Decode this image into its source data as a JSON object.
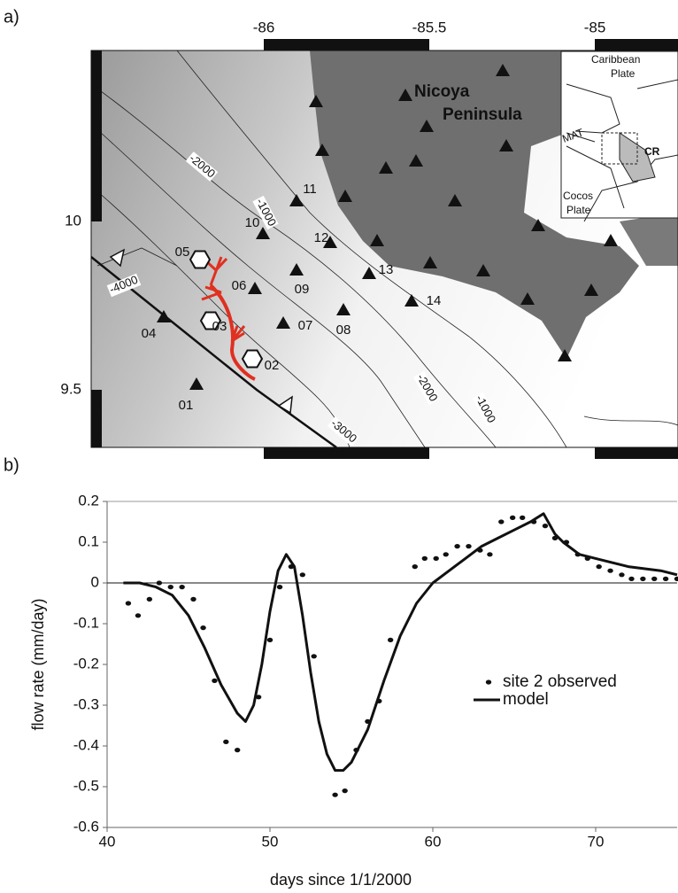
{
  "panels": {
    "a": "a)",
    "b": "b)"
  },
  "map": {
    "lon_ticks": [
      -86,
      -85.5,
      -85
    ],
    "lat_ticks": [
      10,
      9.5
    ],
    "region_label": [
      "Nicoya",
      "Peninsula"
    ],
    "stations": [
      "01",
      "02",
      "03",
      "04",
      "05",
      "06",
      "07",
      "08",
      "09",
      "10",
      "11",
      "12",
      "13",
      "14"
    ],
    "contour_labels": [
      "-2000",
      "-1000",
      "-4000",
      "-3000",
      "-2000",
      "-1000"
    ],
    "inset_labels": [
      "Caribbean",
      "Plate",
      "CR",
      "MAT",
      "Cocos",
      "Plate"
    ]
  },
  "chart_data": {
    "type": "line",
    "x_label": "days since 1/1/2000",
    "y_label": "flow rate (mm/day)",
    "xlim": [
      40,
      75
    ],
    "xticks": [
      40,
      50,
      60,
      70
    ],
    "ylim": [
      -0.6,
      0.2
    ],
    "yticks": [
      0.2,
      0.1,
      0,
      -0.1,
      -0.2,
      -0.3,
      -0.4,
      -0.5,
      -0.6
    ],
    "hline": 0,
    "legend": "lower right",
    "series": [
      {
        "name": "site 2 observed",
        "color": "#111111",
        "marker": "dot",
        "x": [
          41.3,
          41.9,
          42.6,
          43.2,
          43.9,
          44.6,
          45.3,
          45.9,
          46.6,
          47.3,
          48.0,
          49.3,
          50.0,
          50.6,
          51.3,
          52.0,
          52.7,
          54.0,
          54.6,
          55.3,
          56.0,
          56.7,
          57.4,
          58.9,
          59.5,
          60.2,
          60.8,
          61.5,
          62.2,
          62.9,
          63.5,
          64.2,
          64.9,
          65.5,
          66.2,
          66.9,
          67.5,
          68.2,
          68.9,
          69.5,
          70.2,
          70.9,
          71.6,
          72.2,
          72.9,
          73.6,
          74.3,
          75.0
        ],
        "values": [
          -0.05,
          -0.08,
          -0.04,
          0.0,
          -0.01,
          -0.01,
          -0.04,
          -0.11,
          -0.24,
          -0.39,
          -0.41,
          -0.28,
          -0.14,
          -0.01,
          0.04,
          0.02,
          -0.18,
          -0.52,
          -0.51,
          -0.41,
          -0.34,
          -0.29,
          -0.14,
          0.04,
          0.06,
          0.06,
          0.07,
          0.09,
          0.09,
          0.08,
          0.07,
          0.15,
          0.16,
          0.16,
          0.15,
          0.14,
          0.11,
          0.1,
          0.07,
          0.06,
          0.04,
          0.03,
          0.02,
          0.01,
          0.01,
          0.01,
          0.01,
          0.01
        ]
      },
      {
        "name": "model",
        "color": "#111111",
        "marker": "none",
        "x": [
          41,
          42,
          43,
          44,
          45,
          46,
          47,
          48,
          48.5,
          49,
          49.5,
          50,
          50.5,
          51,
          51.5,
          52,
          52.5,
          53,
          53.5,
          54,
          54.5,
          55,
          56,
          57,
          58,
          59,
          60,
          61,
          62,
          63,
          64,
          65,
          66,
          66.8,
          67.5,
          68,
          69,
          70,
          72,
          74,
          75
        ],
        "values": [
          0.0,
          0.0,
          -0.01,
          -0.03,
          -0.08,
          -0.16,
          -0.25,
          -0.32,
          -0.34,
          -0.3,
          -0.2,
          -0.07,
          0.03,
          0.07,
          0.04,
          -0.08,
          -0.22,
          -0.34,
          -0.42,
          -0.46,
          -0.46,
          -0.44,
          -0.36,
          -0.24,
          -0.13,
          -0.05,
          0.0,
          0.03,
          0.06,
          0.09,
          0.11,
          0.13,
          0.15,
          0.17,
          0.12,
          0.1,
          0.07,
          0.06,
          0.04,
          0.03,
          0.02
        ]
      }
    ]
  }
}
